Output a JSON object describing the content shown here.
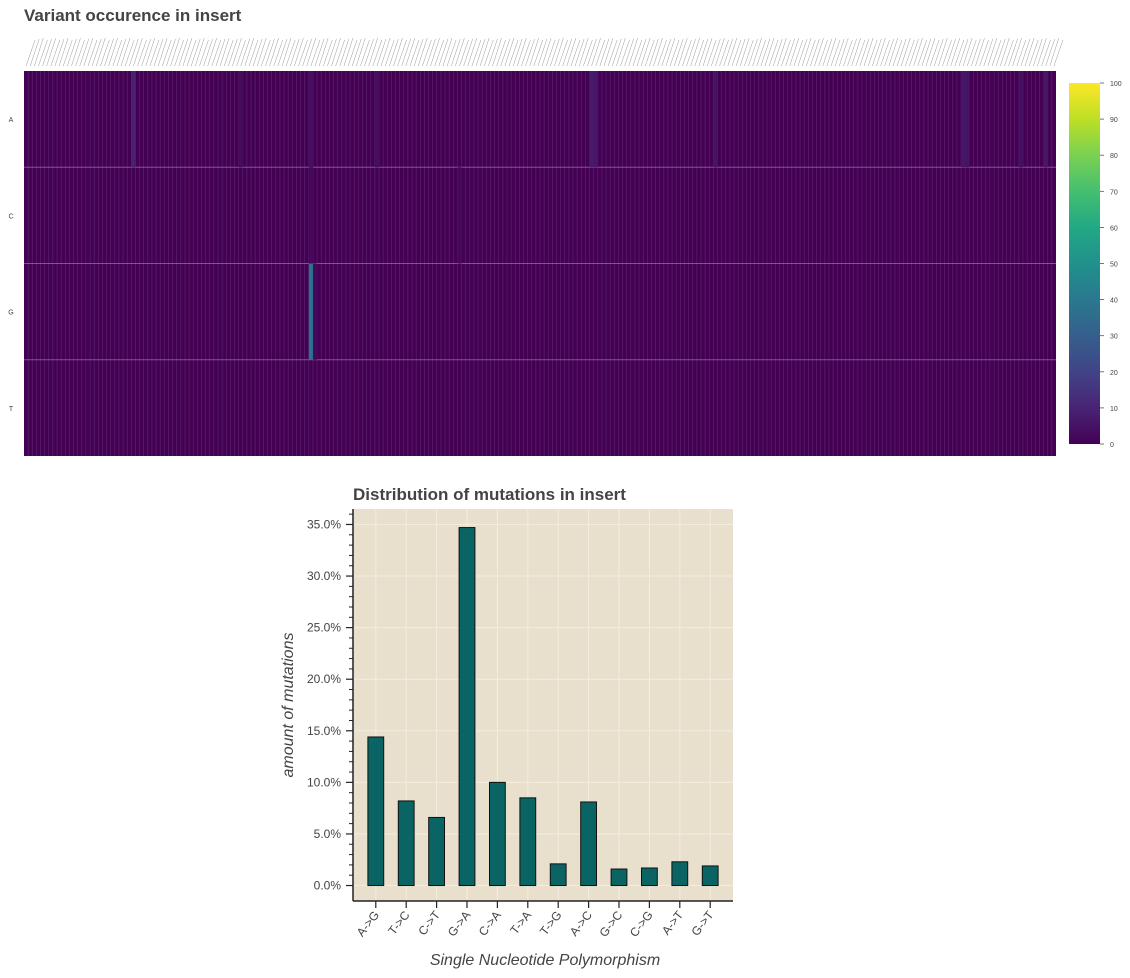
{
  "chart_data": [
    {
      "type": "heatmap",
      "title": "Variant occurence in insert",
      "rows": [
        "A",
        "C",
        "G",
        "T"
      ],
      "column_count": 250,
      "colorbar": {
        "ticks": [
          0,
          10,
          20,
          30,
          40,
          50,
          60,
          70,
          80,
          90,
          100
        ],
        "range": [
          0,
          100
        ],
        "colormap": "viridis"
      },
      "cells": [
        {
          "row": "A",
          "col": 26,
          "value": 9
        },
        {
          "row": "A",
          "col": 52,
          "value": 3
        },
        {
          "row": "A",
          "col": 69,
          "value": 4
        },
        {
          "row": "A",
          "col": 85,
          "value": 4
        },
        {
          "row": "A",
          "col": 137,
          "value": 7
        },
        {
          "row": "A",
          "col": 138,
          "value": 6
        },
        {
          "row": "A",
          "col": 167,
          "value": 5
        },
        {
          "row": "A",
          "col": 227,
          "value": 6
        },
        {
          "row": "A",
          "col": 228,
          "value": 5
        },
        {
          "row": "A",
          "col": 241,
          "value": 4
        },
        {
          "row": "A",
          "col": 247,
          "value": 6
        },
        {
          "row": "G",
          "col": 69,
          "value": 38
        },
        {
          "row": "G",
          "col": 70,
          "value": 2
        },
        {
          "row": "C",
          "col": 69,
          "value": 2
        },
        {
          "row": "C",
          "col": 105,
          "value": 2
        }
      ]
    },
    {
      "type": "bar",
      "title": "Distribution of mutations in insert",
      "categories": [
        "A->G",
        "T->C",
        "C->T",
        "G->A",
        "C->A",
        "T->A",
        "T->G",
        "A->C",
        "G->C",
        "C->G",
        "A->T",
        "G->T"
      ],
      "values": [
        14.4,
        8.2,
        6.6,
        34.7,
        10.0,
        8.5,
        2.1,
        8.1,
        1.6,
        1.7,
        2.3,
        1.9
      ],
      "xlabel": "Single Nucleotide Polymorphism",
      "ylabel": "amount of mutations",
      "yticks": [
        "0.0%",
        "5.0%",
        "10.0%",
        "15.0%",
        "20.0%",
        "25.0%",
        "30.0%",
        "35.0%"
      ],
      "ylim": [
        -1.5,
        36.5
      ],
      "grid": true,
      "background": "#e8dfcc",
      "bar_color": "#0b6464"
    }
  ]
}
